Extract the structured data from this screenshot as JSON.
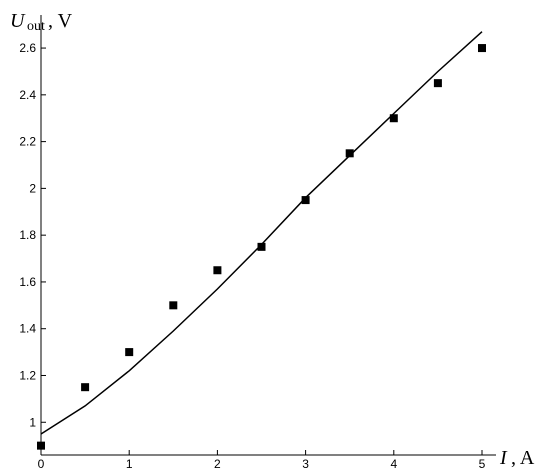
{
  "chart_data": {
    "type": "scatter",
    "ylabel": {
      "symbol": "U",
      "subscript": "out",
      "unit": ", V"
    },
    "xlabel": {
      "symbol": "I",
      "subscript": "",
      "unit": ", A"
    },
    "xlim": [
      0,
      5
    ],
    "ylim": [
      0.86,
      2.72
    ],
    "x_ticks": [
      0,
      1,
      2,
      3,
      4,
      5
    ],
    "y_ticks": [
      1,
      1.2,
      1.4,
      1.6,
      1.8,
      2,
      2.2,
      2.4,
      2.6
    ],
    "x_tick_labels": [
      "0",
      "1",
      "2",
      "3",
      "4",
      "5"
    ],
    "y_tick_labels": [
      "1",
      "1.2",
      "1.4",
      "1.6",
      "1.8",
      "2",
      "2.2",
      "2.4",
      "2.6"
    ],
    "grid": false,
    "series": [
      {
        "kind": "points",
        "marker": "square",
        "x": [
          0,
          0.5,
          1,
          1.5,
          2,
          2.5,
          3,
          3.5,
          4,
          4.5,
          5
        ],
        "y": [
          0.9,
          1.15,
          1.3,
          1.5,
          1.65,
          1.75,
          1.95,
          2.15,
          2.3,
          2.45,
          2.6
        ]
      },
      {
        "kind": "line",
        "x": [
          0,
          0.5,
          1,
          1.5,
          2,
          2.5,
          3,
          3.5,
          4,
          4.5,
          5
        ],
        "y": [
          0.95,
          1.07,
          1.22,
          1.39,
          1.57,
          1.76,
          1.96,
          2.14,
          2.32,
          2.5,
          2.67
        ]
      }
    ]
  }
}
